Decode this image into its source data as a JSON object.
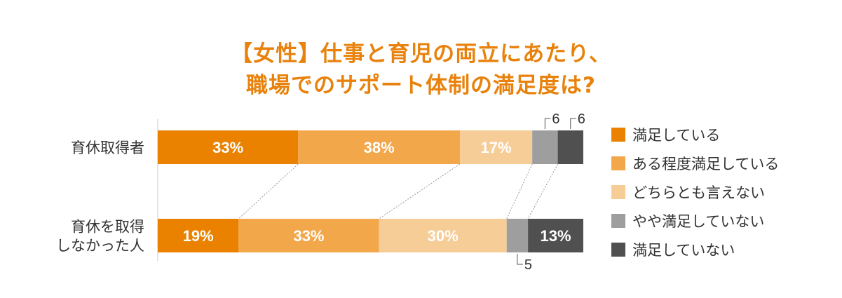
{
  "title": {
    "line1": "【女性】仕事と育児の両立にあたり、",
    "line2": "職場でのサポート体制の満足度は?"
  },
  "colors": {
    "accent": "#e8820c",
    "very_satisfied": "#ea8200",
    "somewhat_satisfied": "#f2a74b",
    "neutral": "#f7cd97",
    "somewhat_dissatisfied": "#9e9e9e",
    "dissatisfied": "#505050"
  },
  "chart_data": {
    "type": "bar",
    "orientation": "horizontal",
    "stacked": true,
    "unit": "%",
    "categories": [
      "育休取得者",
      "育休を取得しなかった人"
    ],
    "category_labels": [
      [
        "育休取得者"
      ],
      [
        "育休を取得",
        "しなかった人"
      ]
    ],
    "series": [
      {
        "name": "満足している",
        "color": "#ea8200",
        "values": [
          33,
          19
        ],
        "labels": [
          "33%",
          "19%"
        ]
      },
      {
        "name": "ある程度満足している",
        "color": "#f2a74b",
        "values": [
          38,
          33
        ],
        "labels": [
          "38%",
          "33%"
        ]
      },
      {
        "name": "どちらとも言えない",
        "color": "#f7cd97",
        "values": [
          17,
          30
        ],
        "labels": [
          "17%",
          "30%"
        ]
      },
      {
        "name": "やや満足していない",
        "color": "#9e9e9e",
        "values": [
          6,
          5
        ],
        "labels": [
          "6",
          "5"
        ]
      },
      {
        "name": "満足していない",
        "color": "#505050",
        "values": [
          6,
          13
        ],
        "labels": [
          "6",
          "13%"
        ]
      }
    ],
    "legend_position": "right",
    "grid": false
  }
}
